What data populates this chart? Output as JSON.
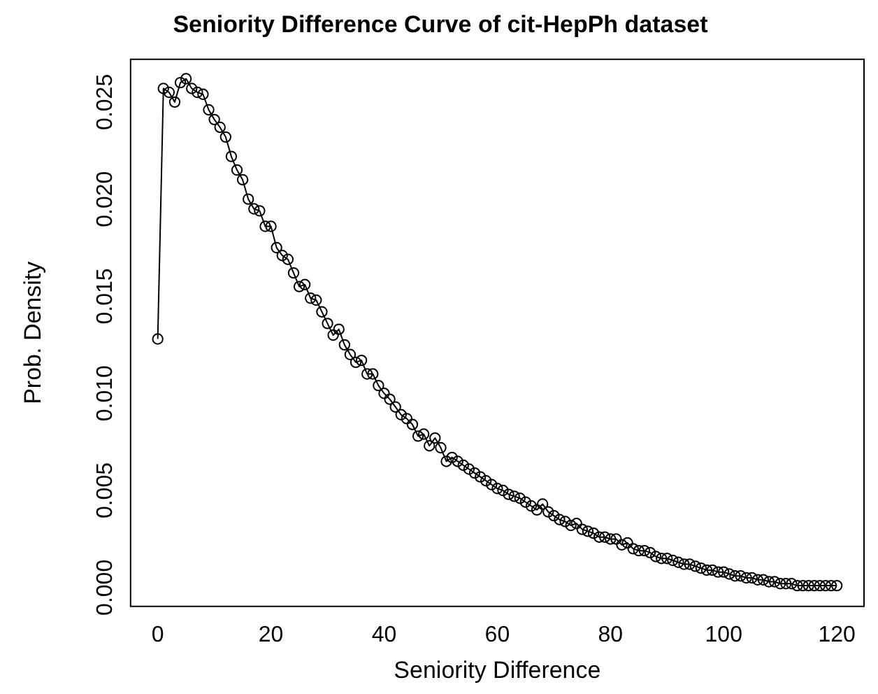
{
  "chart_data": {
    "type": "line",
    "title": "Seniority Difference Curve of cit-HepPh dataset",
    "xlabel": "Seniority Difference",
    "ylabel": "Prob. Density",
    "x": [
      0,
      1,
      2,
      3,
      4,
      5,
      6,
      7,
      8,
      9,
      10,
      11,
      12,
      13,
      14,
      15,
      16,
      17,
      18,
      19,
      20,
      21,
      22,
      23,
      24,
      25,
      26,
      27,
      28,
      29,
      30,
      31,
      32,
      33,
      34,
      35,
      36,
      37,
      38,
      39,
      40,
      41,
      42,
      43,
      44,
      45,
      46,
      47,
      48,
      49,
      50,
      51,
      52,
      53,
      54,
      55,
      56,
      57,
      58,
      59,
      60,
      61,
      62,
      63,
      64,
      65,
      66,
      67,
      68,
      69,
      70,
      71,
      72,
      73,
      74,
      75,
      76,
      77,
      78,
      79,
      80,
      81,
      82,
      83,
      84,
      85,
      86,
      87,
      88,
      89,
      90,
      91,
      92,
      93,
      94,
      95,
      96,
      97,
      98,
      99,
      100,
      101,
      102,
      103,
      104,
      105,
      106,
      107,
      108,
      109,
      110,
      111,
      112,
      113,
      114,
      115,
      116,
      117,
      118,
      119,
      120
    ],
    "series": [
      {
        "color": "#000000",
        "values": [
          0.0128,
          0.0257,
          0.0255,
          0.025,
          0.026,
          0.0262,
          0.0257,
          0.0255,
          0.0254,
          0.0246,
          0.0241,
          0.0237,
          0.0232,
          0.0222,
          0.0215,
          0.021,
          0.02,
          0.0195,
          0.0194,
          0.0186,
          0.0186,
          0.0175,
          0.0171,
          0.0169,
          0.0162,
          0.0155,
          0.0156,
          0.0149,
          0.0148,
          0.0142,
          0.0136,
          0.013,
          0.0133,
          0.0125,
          0.012,
          0.0116,
          0.0117,
          0.011,
          0.011,
          0.0104,
          0.01,
          0.0097,
          0.0093,
          0.0089,
          0.0087,
          0.0084,
          0.0078,
          0.0079,
          0.0073,
          0.0077,
          0.0072,
          0.0065,
          0.0067,
          0.0065,
          0.0063,
          0.0061,
          0.0059,
          0.0057,
          0.0055,
          0.0053,
          0.0051,
          0.005,
          0.0048,
          0.0047,
          0.0046,
          0.0044,
          0.0042,
          0.004,
          0.0043,
          0.0039,
          0.0037,
          0.0035,
          0.0034,
          0.0032,
          0.0033,
          0.003,
          0.0029,
          0.0028,
          0.0026,
          0.0026,
          0.0025,
          0.0025,
          0.0022,
          0.0023,
          0.002,
          0.0019,
          0.0019,
          0.0018,
          0.0016,
          0.0015,
          0.0015,
          0.0014,
          0.0013,
          0.0012,
          0.0012,
          0.0011,
          0.001,
          0.0009,
          0.0009,
          0.0008,
          0.0008,
          0.0007,
          0.0006,
          0.0006,
          0.0005,
          0.0005,
          0.0004,
          0.0004,
          0.0003,
          0.0003,
          0.0002,
          0.0002,
          0.0002,
          0.0001,
          0.0001,
          0.0001,
          0.0001,
          0.0001,
          0.0001,
          0.0001,
          0.0001
        ]
      }
    ],
    "xlim": [
      -4.8,
      124.8
    ],
    "xticks": [
      0,
      20,
      40,
      60,
      80,
      100,
      120
    ],
    "ylim": [
      -0.00097,
      0.0272
    ],
    "yticks": [
      {
        "value": 0,
        "label": "0.000"
      },
      {
        "value": 0.005,
        "label": "0.005"
      },
      {
        "value": 0.01,
        "label": "0.010"
      },
      {
        "value": 0.015,
        "label": "0.015"
      },
      {
        "value": 0.02,
        "label": "0.020"
      },
      {
        "value": 0.025,
        "label": "0.025"
      }
    ],
    "grid": false,
    "legend": false,
    "marker": "circle",
    "line_style": "solid"
  }
}
